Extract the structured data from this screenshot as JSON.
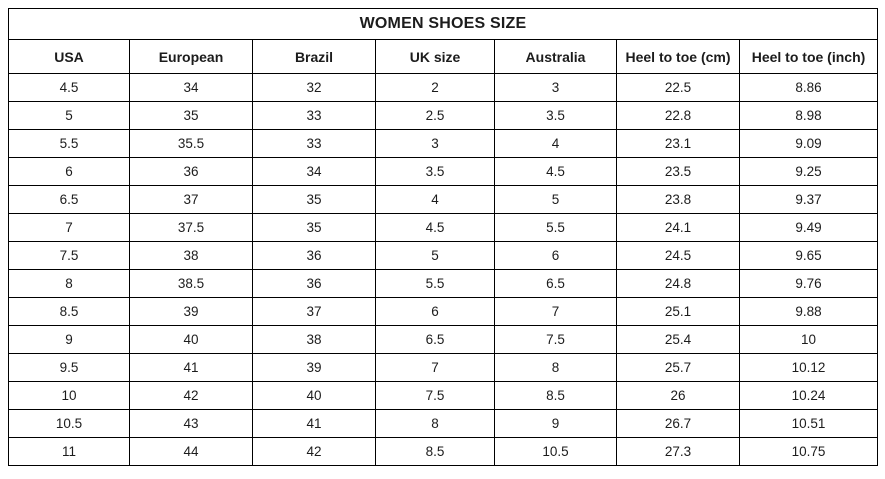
{
  "chart_data": {
    "type": "table",
    "title": "WOMEN SHOES SIZE",
    "columns": [
      "USA",
      "European",
      "Brazil",
      "UK size",
      "Australia",
      "Heel to toe (cm)",
      "Heel to toe (inch)"
    ],
    "rows": [
      [
        "4.5",
        "34",
        "32",
        "2",
        "3",
        "22.5",
        "8.86"
      ],
      [
        "5",
        "35",
        "33",
        "2.5",
        "3.5",
        "22.8",
        "8.98"
      ],
      [
        "5.5",
        "35.5",
        "33",
        "3",
        "4",
        "23.1",
        "9.09"
      ],
      [
        "6",
        "36",
        "34",
        "3.5",
        "4.5",
        "23.5",
        "9.25"
      ],
      [
        "6.5",
        "37",
        "35",
        "4",
        "5",
        "23.8",
        "9.37"
      ],
      [
        "7",
        "37.5",
        "35",
        "4.5",
        "5.5",
        "24.1",
        "9.49"
      ],
      [
        "7.5",
        "38",
        "36",
        "5",
        "6",
        "24.5",
        "9.65"
      ],
      [
        "8",
        "38.5",
        "36",
        "5.5",
        "6.5",
        "24.8",
        "9.76"
      ],
      [
        "8.5",
        "39",
        "37",
        "6",
        "7",
        "25.1",
        "9.88"
      ],
      [
        "9",
        "40",
        "38",
        "6.5",
        "7.5",
        "25.4",
        "10"
      ],
      [
        "9.5",
        "41",
        "39",
        "7",
        "8",
        "25.7",
        "10.12"
      ],
      [
        "10",
        "42",
        "40",
        "7.5",
        "8.5",
        "26",
        "10.24"
      ],
      [
        "10.5",
        "43",
        "41",
        "8",
        "9",
        "26.7",
        "10.51"
      ],
      [
        "11",
        "44",
        "42",
        "8.5",
        "10.5",
        "27.3",
        "10.75"
      ]
    ],
    "layout": {
      "grid": "all-borders",
      "title_position": "top-merged-row",
      "text_align": "center"
    }
  },
  "colors": {
    "background": "#ffffff",
    "border": "#000000",
    "text": "#1c1c1c"
  }
}
